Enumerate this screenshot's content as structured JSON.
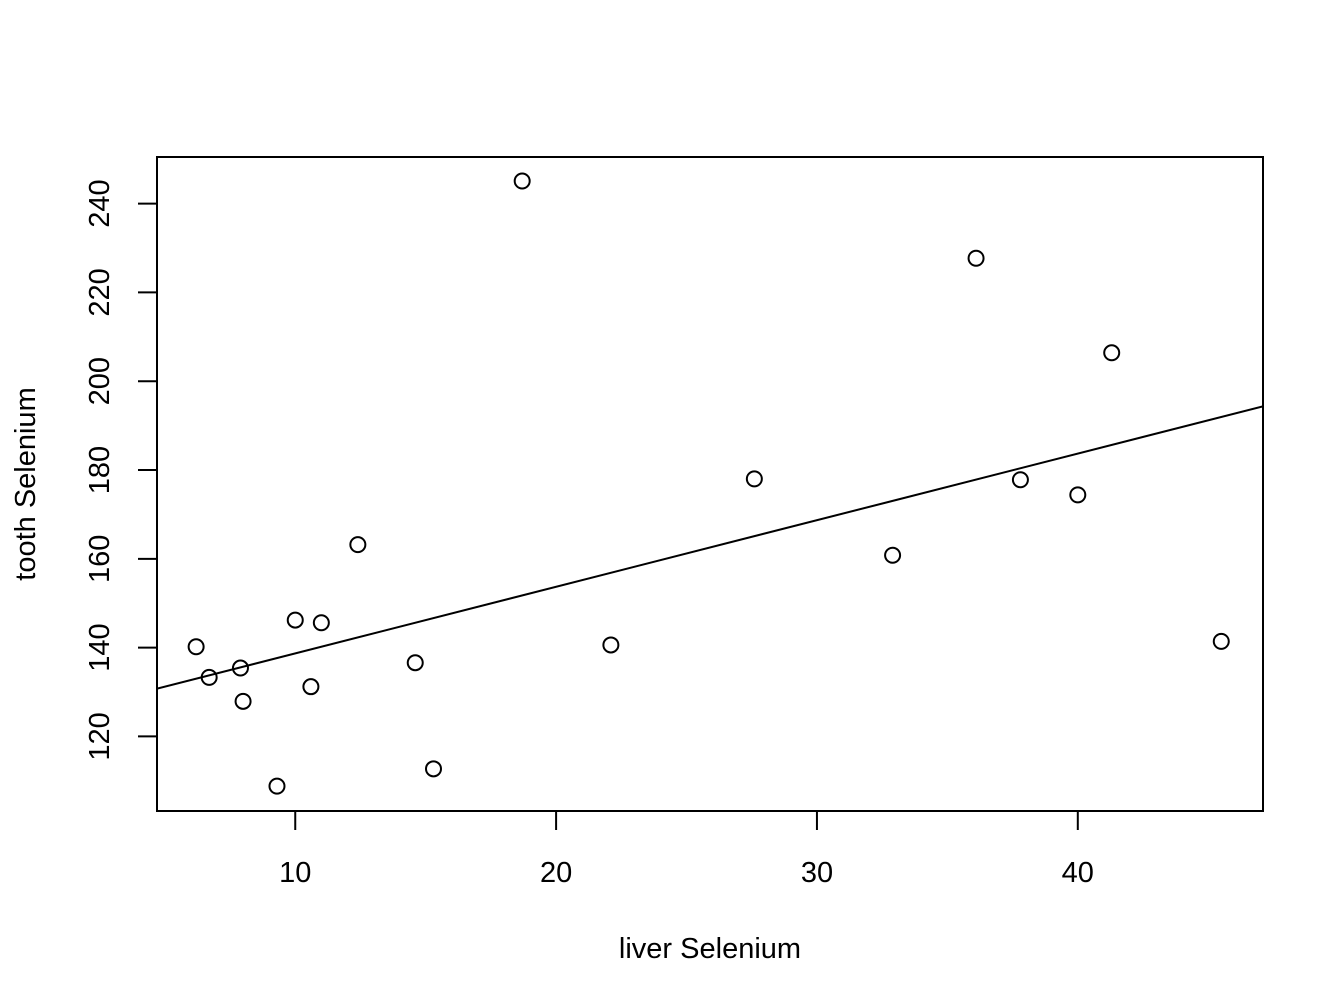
{
  "chart_data": {
    "type": "scatter",
    "title": "",
    "xlabel": "liver Selenium",
    "ylabel": "tooth Selenium",
    "xlim": [
      4.7,
      47.1
    ],
    "ylim": [
      103.2,
      250.5
    ],
    "x_ticks": [
      10,
      20,
      30,
      40
    ],
    "y_ticks": [
      120,
      140,
      160,
      180,
      200,
      220,
      240
    ],
    "grid": false,
    "legend": "none",
    "marker": "open-circle",
    "colors": {
      "points": "#000000",
      "line": "#000000",
      "frame": "#000000",
      "background": "#ffffff"
    },
    "points": [
      {
        "x": 6.2,
        "y": 140.2
      },
      {
        "x": 6.7,
        "y": 133.3
      },
      {
        "x": 7.9,
        "y": 135.4
      },
      {
        "x": 8.0,
        "y": 127.9
      },
      {
        "x": 9.3,
        "y": 108.8
      },
      {
        "x": 10.0,
        "y": 146.2
      },
      {
        "x": 10.6,
        "y": 131.2
      },
      {
        "x": 11.0,
        "y": 145.6
      },
      {
        "x": 12.4,
        "y": 163.2
      },
      {
        "x": 14.6,
        "y": 136.6
      },
      {
        "x": 15.3,
        "y": 112.7
      },
      {
        "x": 18.7,
        "y": 245.1
      },
      {
        "x": 22.1,
        "y": 140.6
      },
      {
        "x": 27.6,
        "y": 178.0
      },
      {
        "x": 32.9,
        "y": 160.8
      },
      {
        "x": 36.1,
        "y": 227.7
      },
      {
        "x": 37.8,
        "y": 177.8
      },
      {
        "x": 40.0,
        "y": 174.4
      },
      {
        "x": 41.3,
        "y": 206.4
      },
      {
        "x": 45.5,
        "y": 141.4
      }
    ],
    "fit_line": {
      "intercept": 123.7,
      "slope": 1.5
    }
  }
}
